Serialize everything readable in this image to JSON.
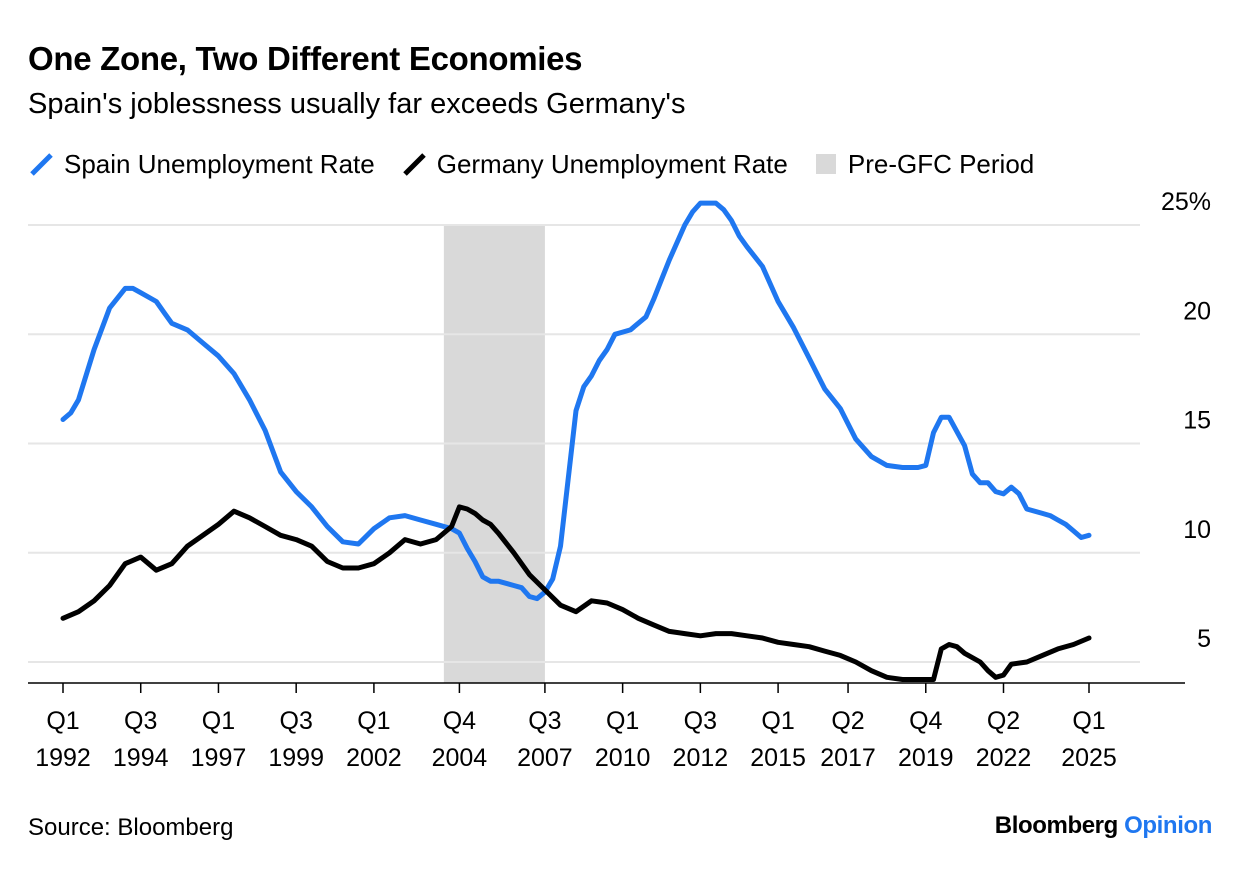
{
  "header": {
    "title": "One Zone, Two Different Economies",
    "subtitle": "Spain's joblessness usually far exceeds Germany's"
  },
  "legend": {
    "spain": "Spain Unemployment Rate",
    "germany": "Germany Unemployment Rate",
    "shade": "Pre-GFC Period"
  },
  "footer": {
    "source": "Source: Bloomberg",
    "brand_main": "Bloomberg",
    "brand_accent": "Opinion"
  },
  "colors": {
    "spain": "#1f77f0",
    "germany": "#000000",
    "shade": "#d9d9d9",
    "grid": "#e6e6e6"
  },
  "chart_data": {
    "type": "line",
    "title": "One Zone, Two Different Economies",
    "subtitle": "Spain's joblessness usually far exceeds Germany's",
    "xlabel": "",
    "ylabel": "",
    "xlim": [
      1992.0,
      2025.0
    ],
    "ylim": [
      4,
      25
    ],
    "yticks": [
      {
        "value": 25,
        "label": "25%"
      },
      {
        "value": 20,
        "label": "20"
      },
      {
        "value": 15,
        "label": "15"
      },
      {
        "value": 10,
        "label": "10"
      },
      {
        "value": 5,
        "label": "5"
      }
    ],
    "xticks": [
      {
        "value": 1992.0,
        "label1": "Q1",
        "label2": "1992"
      },
      {
        "value": 1994.5,
        "label1": "Q3",
        "label2": "1994"
      },
      {
        "value": 1997.0,
        "label1": "Q1",
        "label2": "1997"
      },
      {
        "value": 1999.5,
        "label1": "Q3",
        "label2": "1999"
      },
      {
        "value": 2002.0,
        "label1": "Q1",
        "label2": "2002"
      },
      {
        "value": 2004.75,
        "label1": "Q4",
        "label2": "2004"
      },
      {
        "value": 2007.5,
        "label1": "Q3",
        "label2": "2007"
      },
      {
        "value": 2010.0,
        "label1": "Q1",
        "label2": "2010"
      },
      {
        "value": 2012.5,
        "label1": "Q3",
        "label2": "2012"
      },
      {
        "value": 2015.0,
        "label1": "Q1",
        "label2": "2015"
      },
      {
        "value": 2017.25,
        "label1": "Q2",
        "label2": "2017"
      },
      {
        "value": 2019.75,
        "label1": "Q4",
        "label2": "2019"
      },
      {
        "value": 2022.25,
        "label1": "Q2",
        "label2": "2022"
      },
      {
        "value": 2025.0,
        "label1": "Q1",
        "label2": "2025"
      }
    ],
    "shaded_period": {
      "name": "Pre-GFC Period",
      "start": 2004.25,
      "end": 2007.5
    },
    "grid": true,
    "legend_position": "top-left",
    "series": [
      {
        "name": "Spain Unemployment Rate",
        "color": "#1f77f0",
        "x": [
          1992.0,
          1992.25,
          1992.5,
          1993.0,
          1993.5,
          1994.0,
          1994.25,
          1994.5,
          1995.0,
          1995.25,
          1995.5,
          1996.0,
          1996.5,
          1997.0,
          1997.5,
          1998.0,
          1998.5,
          1999.0,
          1999.5,
          2000.0,
          2000.5,
          2001.0,
          2001.5,
          2002.0,
          2002.5,
          2003.0,
          2003.5,
          2004.0,
          2004.5,
          2004.75,
          2005.0,
          2005.25,
          2005.5,
          2005.75,
          2006.0,
          2006.25,
          2006.5,
          2006.75,
          2007.0,
          2007.25,
          2007.5,
          2007.75,
          2008.0,
          2008.5,
          2008.75,
          2009.0,
          2009.25,
          2009.5,
          2009.75,
          2010.0,
          2010.25,
          2010.75,
          2011.0,
          2011.25,
          2011.5,
          2012.0,
          2012.25,
          2012.5,
          2013.0,
          2013.25,
          2013.5,
          2013.75,
          2014.0,
          2014.5,
          2015.0,
          2015.5,
          2016.0,
          2016.5,
          2017.0,
          2017.25,
          2017.5,
          2018.0,
          2018.5,
          2019.0,
          2019.5,
          2019.75,
          2020.0,
          2020.25,
          2020.5,
          2021.0,
          2021.25,
          2021.5,
          2021.75,
          2022.0,
          2022.25,
          2022.5,
          2022.75,
          2023.0,
          2023.5,
          2023.75,
          2024.0,
          2024.25,
          2024.5,
          2024.75,
          2025.0
        ],
        "values": [
          16.1,
          16.4,
          17.0,
          19.3,
          21.2,
          22.1,
          22.1,
          21.9,
          21.5,
          21.0,
          20.5,
          20.2,
          19.6,
          19.0,
          18.2,
          17.0,
          15.6,
          13.7,
          12.8,
          12.1,
          11.2,
          10.5,
          10.4,
          11.1,
          11.6,
          11.7,
          11.5,
          11.3,
          11.1,
          10.9,
          10.2,
          9.6,
          8.9,
          8.7,
          8.7,
          8.6,
          8.5,
          8.4,
          8.0,
          7.9,
          8.2,
          8.8,
          10.3,
          16.5,
          17.6,
          18.1,
          18.8,
          19.3,
          20.0,
          20.1,
          20.2,
          20.8,
          21.6,
          22.5,
          23.4,
          25.0,
          25.6,
          26.0,
          26.0,
          25.7,
          25.2,
          24.5,
          24.0,
          23.1,
          21.5,
          20.3,
          18.9,
          17.5,
          16.6,
          15.9,
          15.2,
          14.4,
          14.0,
          13.9,
          13.9,
          14.0,
          15.5,
          16.2,
          16.2,
          14.9,
          13.6,
          13.2,
          13.2,
          12.8,
          12.7,
          13.0,
          12.7,
          12.0,
          11.8,
          11.7,
          11.5,
          11.3,
          11.0,
          10.7,
          10.8
        ]
      },
      {
        "name": "Germany Unemployment Rate",
        "color": "#000000",
        "x": [
          1992.0,
          1992.5,
          1993.0,
          1993.5,
          1994.0,
          1994.5,
          1995.0,
          1995.5,
          1996.0,
          1996.5,
          1997.0,
          1997.5,
          1998.0,
          1998.5,
          1999.0,
          1999.5,
          2000.0,
          2000.5,
          2001.0,
          2001.5,
          2002.0,
          2002.5,
          2003.0,
          2003.5,
          2004.0,
          2004.5,
          2004.75,
          2005.0,
          2005.25,
          2005.5,
          2005.75,
          2006.0,
          2006.5,
          2007.0,
          2007.5,
          2008.0,
          2008.5,
          2009.0,
          2009.5,
          2010.0,
          2010.5,
          2011.0,
          2011.5,
          2012.0,
          2012.5,
          2013.0,
          2013.5,
          2014.0,
          2014.5,
          2015.0,
          2015.5,
          2016.0,
          2016.5,
          2017.0,
          2017.5,
          2018.0,
          2018.5,
          2019.0,
          2019.5,
          2020.0,
          2020.25,
          2020.5,
          2020.75,
          2021.0,
          2021.5,
          2021.75,
          2022.0,
          2022.25,
          2022.5,
          2023.0,
          2023.5,
          2024.0,
          2024.5,
          2025.0
        ],
        "values": [
          7.0,
          7.3,
          7.8,
          8.5,
          9.5,
          9.8,
          9.2,
          9.5,
          10.3,
          10.8,
          11.3,
          11.9,
          11.6,
          11.2,
          10.8,
          10.6,
          10.3,
          9.6,
          9.3,
          9.3,
          9.5,
          10.0,
          10.6,
          10.4,
          10.6,
          11.2,
          12.1,
          12.0,
          11.8,
          11.5,
          11.3,
          10.9,
          10.0,
          9.0,
          8.3,
          7.6,
          7.3,
          7.8,
          7.7,
          7.4,
          7.0,
          6.7,
          6.4,
          6.3,
          6.2,
          6.3,
          6.3,
          6.2,
          6.1,
          5.9,
          5.8,
          5.7,
          5.5,
          5.3,
          5.0,
          4.6,
          4.3,
          4.2,
          4.2,
          4.2,
          5.6,
          5.8,
          5.7,
          5.4,
          5.0,
          4.6,
          4.3,
          4.4,
          4.9,
          5.0,
          5.3,
          5.6,
          5.8,
          6.1
        ]
      }
    ]
  }
}
